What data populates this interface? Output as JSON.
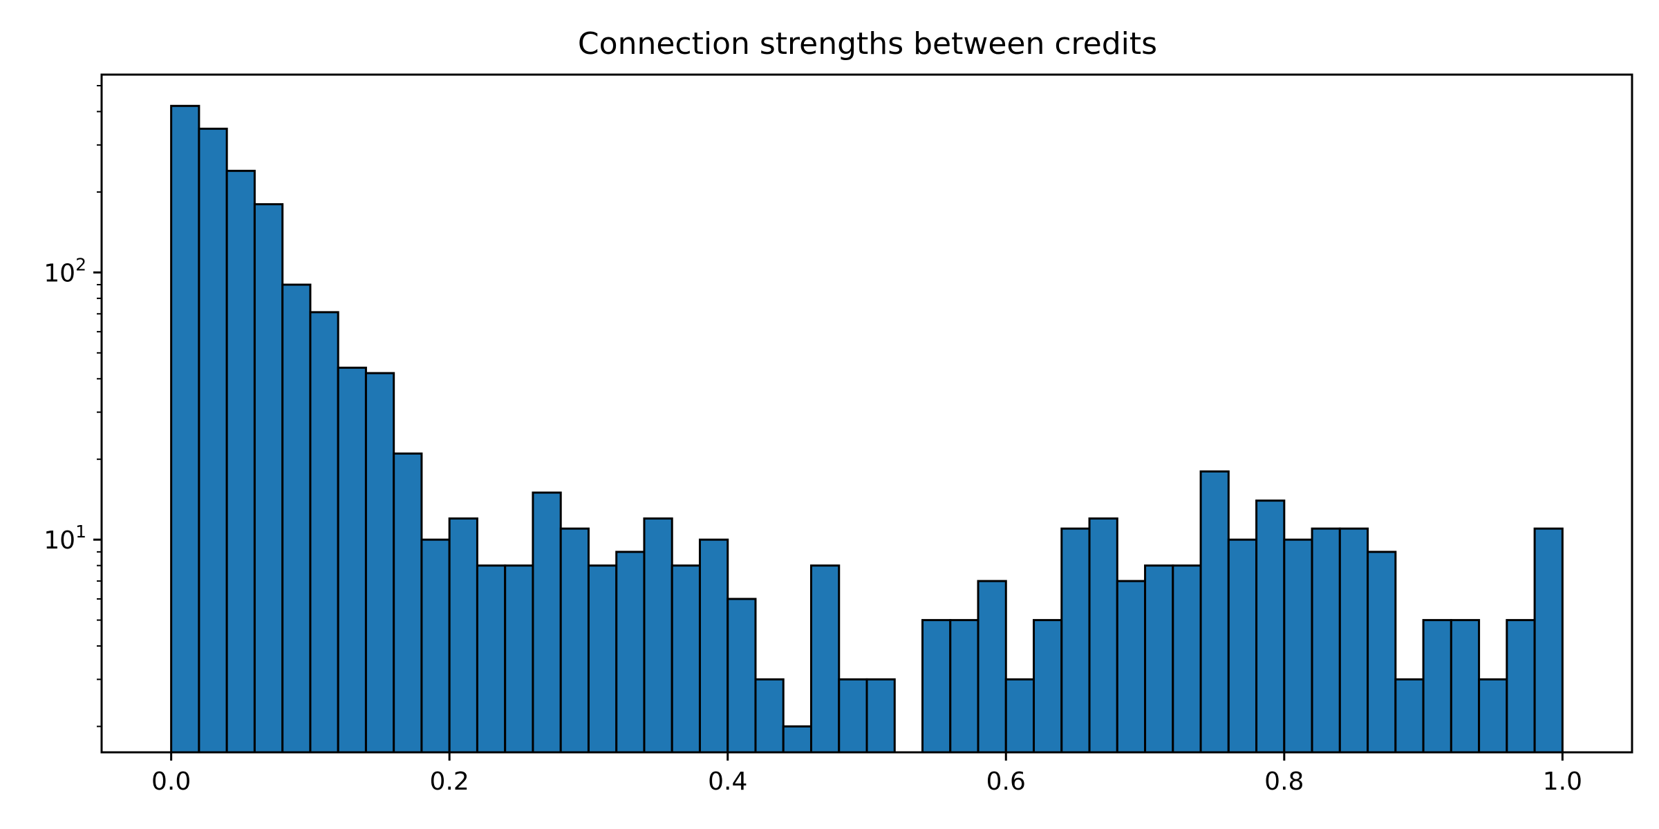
{
  "chart_data": {
    "type": "bar",
    "title": "Connection strengths between credits",
    "xlabel": "",
    "ylabel": "",
    "y_scale": "log",
    "xlim": [
      -0.05,
      1.05
    ],
    "ylim": [
      1.6,
      550
    ],
    "bar_color": "#1f77b4",
    "edge_color": "#000000",
    "grid": false,
    "bin_width": 0.02,
    "bin_starts": [
      0.0,
      0.02,
      0.04,
      0.06,
      0.08,
      0.1,
      0.12,
      0.14,
      0.16,
      0.18,
      0.2,
      0.22,
      0.24,
      0.26,
      0.28,
      0.3,
      0.32,
      0.34,
      0.36,
      0.38,
      0.4,
      0.42,
      0.44,
      0.46,
      0.48,
      0.5,
      0.52,
      0.54,
      0.56,
      0.58,
      0.6,
      0.62,
      0.64,
      0.66,
      0.68,
      0.7,
      0.72,
      0.74,
      0.76,
      0.78,
      0.8,
      0.82,
      0.84,
      0.86,
      0.88,
      0.9,
      0.92,
      0.94,
      0.96,
      0.98
    ],
    "values": [
      420,
      345,
      240,
      180,
      90,
      71,
      44,
      42,
      21,
      10,
      12,
      8,
      8,
      15,
      11,
      8,
      9,
      12,
      8,
      10,
      6,
      3,
      2,
      8,
      3,
      3,
      0,
      5,
      5,
      7,
      3,
      5,
      11,
      12,
      7,
      8,
      8,
      18,
      10,
      14,
      10,
      11,
      11,
      9,
      3,
      5,
      5,
      3,
      5,
      11
    ],
    "x_ticks": [
      {
        "value": 0.0,
        "label": "0.0"
      },
      {
        "value": 0.2,
        "label": "0.2"
      },
      {
        "value": 0.4,
        "label": "0.4"
      },
      {
        "value": 0.6,
        "label": "0.6"
      },
      {
        "value": 0.8,
        "label": "0.8"
      },
      {
        "value": 1.0,
        "label": "1.0"
      }
    ],
    "y_ticks": [
      {
        "value": 10,
        "base": "10",
        "exp": "1"
      },
      {
        "value": 100,
        "base": "10",
        "exp": "2"
      }
    ],
    "y_minor_ticks": [
      2,
      3,
      4,
      5,
      6,
      7,
      8,
      9,
      20,
      30,
      40,
      50,
      60,
      70,
      80,
      90,
      200,
      300,
      400,
      500
    ]
  }
}
